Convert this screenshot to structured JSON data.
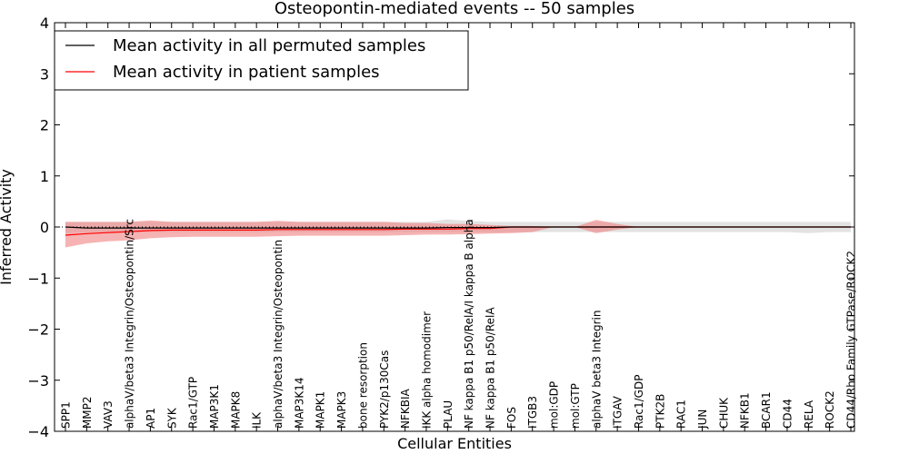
{
  "chart_data": {
    "type": "line",
    "title": "Osteopontin-mediated events -- 50 samples",
    "xlabel": "Cellular Entities",
    "ylabel": "Inferred Activity",
    "ylim": [
      -4,
      4
    ],
    "yticks": [
      "4",
      "3",
      "2",
      "1",
      "0",
      "−1",
      "−2",
      "−3",
      "−4"
    ],
    "ytick_values": [
      4,
      3,
      2,
      1,
      0,
      -1,
      -2,
      -3,
      -4
    ],
    "grid": false,
    "legend_position": "top-left",
    "categories": [
      "SPP1",
      "MMP2",
      "VAV3",
      "alphaV/beta3 Integrin/Osteopontin/Src",
      "AP1",
      "SYK",
      "Rac1/GTP",
      "MAP3K1",
      "MAPK8",
      "ILK",
      "alphaV/beta3 Integrin/Osteopontin",
      "MAP3K14",
      "MAPK1",
      "MAPK3",
      "bone resorption",
      "PYK2/p130Cas",
      "NFKBIA",
      "IKK alpha homodimer",
      "PLAU",
      "NF kappa B1 p50/RelA/I kappa B alpha",
      "NF kappa B1 p50/RelA",
      "FOS",
      "ITGB3",
      "mol:GDP",
      "mol:GTP",
      "alphaV beta3 Integrin",
      "ITGAV",
      "Rac1/GDP",
      "PTK2B",
      "RAC1",
      "JUN",
      "CHUK",
      "NFKB1",
      "BCAR1",
      "CD44",
      "RELA",
      "ROCK2",
      "CD44/Rho Family GTPase/ROCK2"
    ],
    "series": [
      {
        "name": "Mean activity in all permuted samples",
        "color": "#000000",
        "band_color": "#cccccc",
        "values": [
          0.0,
          -0.02,
          -0.02,
          -0.02,
          -0.02,
          -0.02,
          -0.02,
          -0.02,
          -0.02,
          -0.02,
          -0.02,
          -0.02,
          -0.02,
          -0.02,
          -0.02,
          -0.02,
          -0.02,
          -0.02,
          -0.01,
          -0.01,
          -0.01,
          0.0,
          0.0,
          0.0,
          0.0,
          0.0,
          0.0,
          0.0,
          0.0,
          0.0,
          0.0,
          0.0,
          0.0,
          0.0,
          0.0,
          0.0,
          0.0,
          0.0
        ],
        "lower": [
          -0.12,
          -0.1,
          -0.1,
          -0.1,
          -0.1,
          -0.1,
          -0.1,
          -0.1,
          -0.1,
          -0.1,
          -0.1,
          -0.1,
          -0.1,
          -0.1,
          -0.1,
          -0.1,
          -0.1,
          -0.1,
          -0.1,
          -0.1,
          -0.1,
          -0.1,
          -0.1,
          -0.1,
          -0.1,
          -0.1,
          -0.1,
          -0.1,
          -0.1,
          -0.1,
          -0.1,
          -0.1,
          -0.1,
          -0.1,
          -0.1,
          -0.12,
          -0.1,
          -0.1
        ],
        "upper": [
          0.1,
          0.1,
          0.1,
          0.1,
          0.1,
          0.1,
          0.1,
          0.1,
          0.1,
          0.1,
          0.1,
          0.1,
          0.1,
          0.1,
          0.1,
          0.1,
          0.1,
          0.1,
          0.15,
          0.12,
          0.1,
          0.1,
          0.1,
          0.1,
          0.1,
          0.1,
          0.1,
          0.1,
          0.1,
          0.1,
          0.1,
          0.1,
          0.1,
          0.1,
          0.1,
          0.1,
          0.1,
          0.1
        ]
      },
      {
        "name": "Mean activity in patient samples",
        "color": "#ff0000",
        "band_color": "#f08080",
        "values": [
          -0.16,
          -0.13,
          -0.11,
          -0.09,
          -0.07,
          -0.06,
          -0.06,
          -0.06,
          -0.06,
          -0.06,
          -0.05,
          -0.05,
          -0.05,
          -0.05,
          -0.05,
          -0.05,
          -0.04,
          -0.04,
          -0.04,
          -0.03,
          -0.03,
          0.0,
          0.0,
          0.0,
          0.0,
          0.0,
          0.0,
          0.0,
          0.0,
          0.0,
          0.0,
          0.0,
          0.0,
          0.0,
          0.0,
          0.0,
          0.0,
          0.0
        ],
        "lower": [
          -0.4,
          -0.32,
          -0.28,
          -0.26,
          -0.22,
          -0.2,
          -0.19,
          -0.19,
          -0.19,
          -0.19,
          -0.18,
          -0.17,
          -0.17,
          -0.17,
          -0.17,
          -0.17,
          -0.16,
          -0.15,
          -0.15,
          -0.14,
          -0.13,
          -0.12,
          -0.1,
          0.0,
          0.0,
          -0.12,
          -0.05,
          0.0,
          0.0,
          0.0,
          0.0,
          0.0,
          0.0,
          0.0,
          0.0,
          0.0,
          0.0,
          0.0
        ],
        "upper": [
          0.1,
          0.1,
          0.1,
          0.1,
          0.13,
          0.1,
          0.1,
          0.1,
          0.1,
          0.1,
          0.12,
          0.1,
          0.1,
          0.1,
          0.1,
          0.1,
          0.08,
          0.08,
          0.06,
          0.06,
          0.04,
          0.02,
          0.02,
          0.0,
          0.0,
          0.14,
          0.06,
          0.0,
          0.0,
          0.0,
          0.0,
          0.0,
          0.0,
          0.0,
          0.0,
          0.0,
          0.0,
          0.0
        ]
      }
    ],
    "zero_line": 0
  }
}
